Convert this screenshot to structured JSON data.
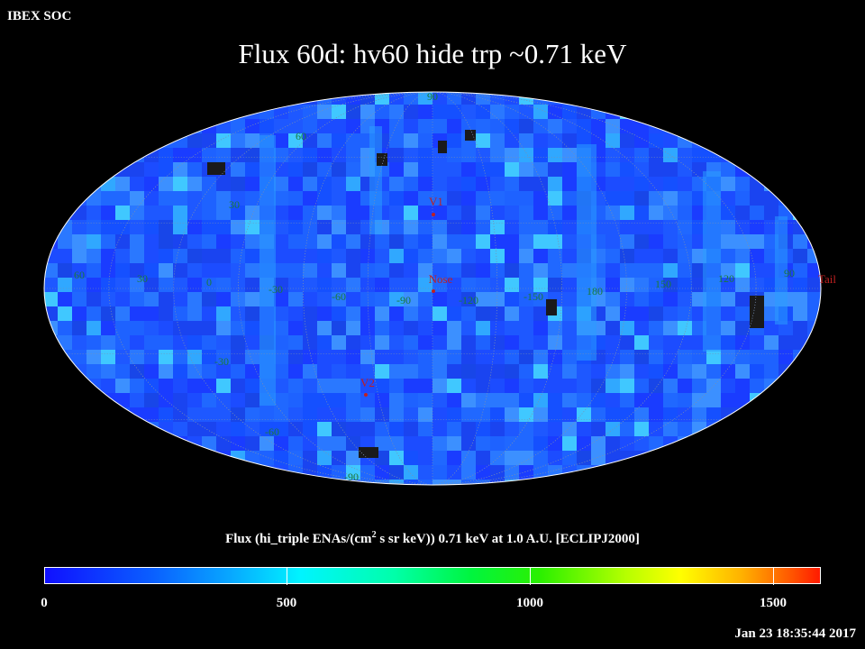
{
  "header": {
    "org": "IBEX SOC",
    "title": "Flux   60d: hv60 hide trp ~0.71 keV"
  },
  "map": {
    "projection": "Aitoff/Hammer (ecliptic J2000)",
    "background_color": "#000000",
    "map_base_color": "#1c4cff",
    "missing_data_color": "#1a1a1a",
    "longitude_labels": [
      "60",
      "30",
      "0",
      "-30",
      "-60",
      "-90",
      "-120",
      "-150",
      "180",
      "150",
      "120",
      "90"
    ],
    "latitude_labels": [
      "90",
      "60",
      "30",
      "-30",
      "-60",
      "-90"
    ],
    "longitude_label_color": "#1a7a3a",
    "markers": [
      {
        "label": "V1",
        "color": "#c02020"
      },
      {
        "label": "Nose",
        "color": "#c02020"
      },
      {
        "label": "V2",
        "color": "#c02020"
      },
      {
        "label": "Tail",
        "color": "#c02020"
      }
    ]
  },
  "colorbar": {
    "title_prefix": "Flux (hi_triple ENAs/(cm",
    "title_sup": "2",
    "title_suffix": " s sr keV))  0.71 keV at 1.0 A.U. [ECLIPJ2000]",
    "min": 0,
    "max": 1600,
    "tick_labels": [
      "0",
      "500",
      "1000",
      "1500"
    ],
    "colors": [
      "#1010ff",
      "#00f4ff",
      "#2cf000",
      "#ffff00",
      "#ff1a00"
    ]
  },
  "footer": {
    "timestamp": "Jan 23 18:35:44 2017"
  }
}
